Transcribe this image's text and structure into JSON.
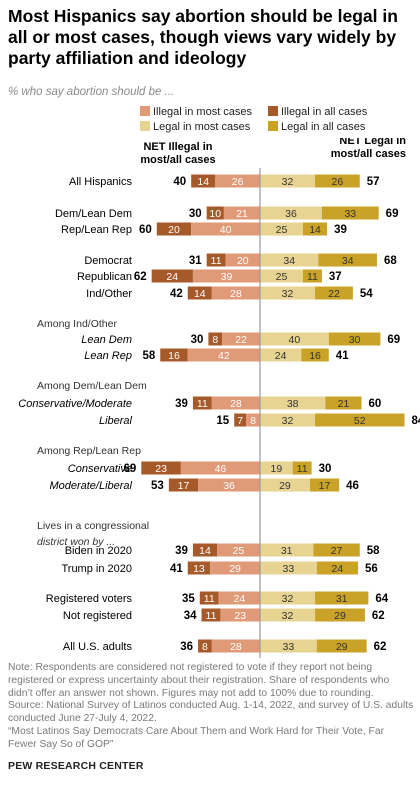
{
  "title": "Most Hispanics say abortion should be legal in all or most cases, though views vary widely by party affiliation and ideology",
  "subtitle": "% who say abortion should be ...",
  "legend": {
    "illegal_most": "Illegal in most cases",
    "illegal_all": "Illegal in all cases",
    "legal_most": "Legal in most cases",
    "legal_all": "Legal in all cases"
  },
  "colors": {
    "illegal_all": "#a65a2a",
    "illegal_most": "#e09a78",
    "legal_most": "#e8d492",
    "legal_all": "#c9a227",
    "divider": "#9a9a9a"
  },
  "chart_data": {
    "type": "bar",
    "orientation": "horizontal-diverging",
    "net_illegal_header": "NET Illegal in most/all cases",
    "net_legal_header": "NET Legal in most/all cases",
    "rows": [
      {
        "label": "All Hispanics",
        "illegal_all": 14,
        "illegal_most": 26,
        "legal_most": 32,
        "legal_all": 26,
        "net_illegal": 40,
        "net_legal": 57
      },
      {
        "label": "Dem/Lean Dem",
        "illegal_all": 10,
        "illegal_most": 21,
        "legal_most": 36,
        "legal_all": 33,
        "net_illegal": 30,
        "net_legal": 69
      },
      {
        "label": "Rep/Lean Rep",
        "illegal_all": 20,
        "illegal_most": 40,
        "legal_most": 25,
        "legal_all": 14,
        "net_illegal": 60,
        "net_legal": 39
      },
      {
        "label": "Democrat",
        "illegal_all": 11,
        "illegal_most": 20,
        "legal_most": 34,
        "legal_all": 34,
        "net_illegal": 31,
        "net_legal": 68
      },
      {
        "label": "Republican",
        "illegal_all": 24,
        "illegal_most": 39,
        "legal_most": 25,
        "legal_all": 11,
        "net_illegal": 62,
        "net_legal": 37
      },
      {
        "label": "Ind/Other",
        "illegal_all": 14,
        "illegal_most": 28,
        "legal_most": 32,
        "legal_all": 22,
        "net_illegal": 42,
        "net_legal": 54
      },
      {
        "header": "Among Ind/Other"
      },
      {
        "label": "Lean Dem",
        "italic": true,
        "illegal_all": 8,
        "illegal_most": 22,
        "legal_most": 40,
        "legal_all": 30,
        "net_illegal": 30,
        "net_legal": 69
      },
      {
        "label": "Lean Rep",
        "italic": true,
        "illegal_all": 16,
        "illegal_most": 42,
        "legal_most": 24,
        "legal_all": 16,
        "net_illegal": 58,
        "net_legal": 41
      },
      {
        "header": "Among Dem/Lean Dem"
      },
      {
        "label": "Conservative/Moderate",
        "italic": true,
        "illegal_all": 11,
        "illegal_most": 28,
        "legal_most": 38,
        "legal_all": 21,
        "net_illegal": 39,
        "net_legal": 60
      },
      {
        "label": "Liberal",
        "italic": true,
        "illegal_all": 7,
        "illegal_most": 8,
        "legal_most": 32,
        "legal_all": 52,
        "net_illegal": 15,
        "net_legal": 84
      },
      {
        "header": "Among Rep/Lean Rep"
      },
      {
        "label": "Conservative",
        "italic": true,
        "illegal_all": 23,
        "illegal_most": 46,
        "legal_most": 19,
        "legal_all": 11,
        "net_illegal": 69,
        "net_legal": 30
      },
      {
        "label": "Moderate/Liberal",
        "italic": true,
        "illegal_all": 17,
        "illegal_most": 36,
        "legal_most": 29,
        "legal_all": 17,
        "net_illegal": 53,
        "net_legal": 46
      },
      {
        "header": "Lives in a congressional",
        "header2": "district won by ..."
      },
      {
        "label": "Biden in 2020",
        "illegal_all": 14,
        "illegal_most": 25,
        "legal_most": 31,
        "legal_all": 27,
        "net_illegal": 39,
        "net_legal": 58
      },
      {
        "label": "Trump in 2020",
        "illegal_all": 13,
        "illegal_most": 29,
        "legal_most": 33,
        "legal_all": 24,
        "net_illegal": 41,
        "net_legal": 56
      },
      {
        "label": "Registered voters",
        "illegal_all": 11,
        "illegal_most": 24,
        "legal_most": 32,
        "legal_all": 31,
        "net_illegal": 35,
        "net_legal": 64
      },
      {
        "label": "Not registered",
        "illegal_all": 11,
        "illegal_most": 23,
        "legal_most": 32,
        "legal_all": 29,
        "net_illegal": 34,
        "net_legal": 62
      },
      {
        "label": "All U.S. adults",
        "illegal_all": 8,
        "illegal_most": 28,
        "legal_most": 33,
        "legal_all": 29,
        "net_illegal": 36,
        "net_legal": 62
      }
    ]
  },
  "notes": {
    "note": "Note: Respondents are considered not registered to vote if they report not being registered or express uncertainty about their registration. Share of respondents who didn’t offer an answer not shown. Figures may not add to 100% due to rounding.",
    "source": "Source: National Survey of Latinos conducted Aug. 1-14, 2022, and survey of U.S. adults conducted June 27-July 4, 2022.",
    "report": "“Most Latinos Say Democrats Care About Them and Work Hard for Their Vote, Far Fewer Say So of GOP”"
  },
  "footer": "PEW RESEARCH CENTER"
}
